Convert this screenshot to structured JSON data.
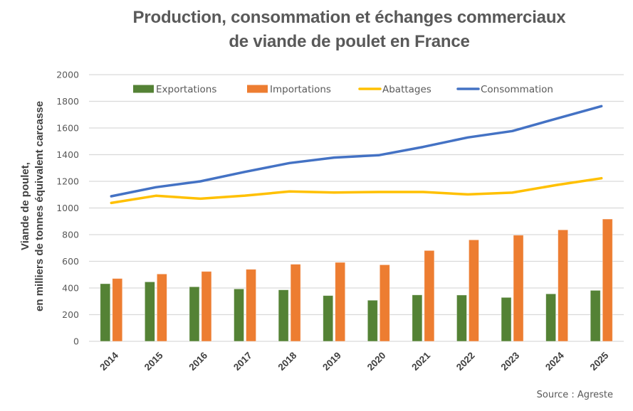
{
  "chart_data": {
    "type": "bar",
    "title": "Production, consommation et échanges commerciaux de viande de poulet en France",
    "title_lines": [
      "Production, consommation et échanges commerciaux",
      "de viande de poulet en France"
    ],
    "xlabel": "",
    "ylabel": "Viande de poulet, en milliers de tonnes équivalent carcasse",
    "ylabel_lines": [
      "Viande de poulet,",
      "en milliers de tonnes équivalent carcasse"
    ],
    "ylim": [
      0,
      2000
    ],
    "yticks": [
      0,
      200,
      400,
      600,
      800,
      1000,
      1200,
      1400,
      1600,
      1800,
      2000
    ],
    "grid": true,
    "legend_position": "top",
    "categories": [
      "2014",
      "2015",
      "2016",
      "2017",
      "2018",
      "2019",
      "2020",
      "2021",
      "2022",
      "2023",
      "2024",
      "2025"
    ],
    "series": [
      {
        "name": "Exportations",
        "kind": "bar",
        "color": "#548235",
        "values": [
          432,
          446,
          409,
          393,
          386,
          343,
          308,
          348,
          347,
          329,
          356,
          382
        ]
      },
      {
        "name": "Importations",
        "kind": "bar",
        "color": "#ED7D31",
        "values": [
          471,
          505,
          524,
          540,
          578,
          592,
          574,
          681,
          761,
          796,
          836,
          917
        ]
      },
      {
        "name": "Abattages",
        "kind": "line",
        "color": "#FFC000",
        "values": [
          1038,
          1092,
          1070,
          1093,
          1124,
          1116,
          1120,
          1120,
          1102,
          1115,
          1173,
          1223
        ]
      },
      {
        "name": "Consommation",
        "kind": "line",
        "color": "#4472C4",
        "values": [
          1088,
          1156,
          1200,
          1271,
          1337,
          1378,
          1396,
          1458,
          1529,
          1577,
          1671,
          1764
        ]
      }
    ],
    "source": "Source : Agreste"
  }
}
